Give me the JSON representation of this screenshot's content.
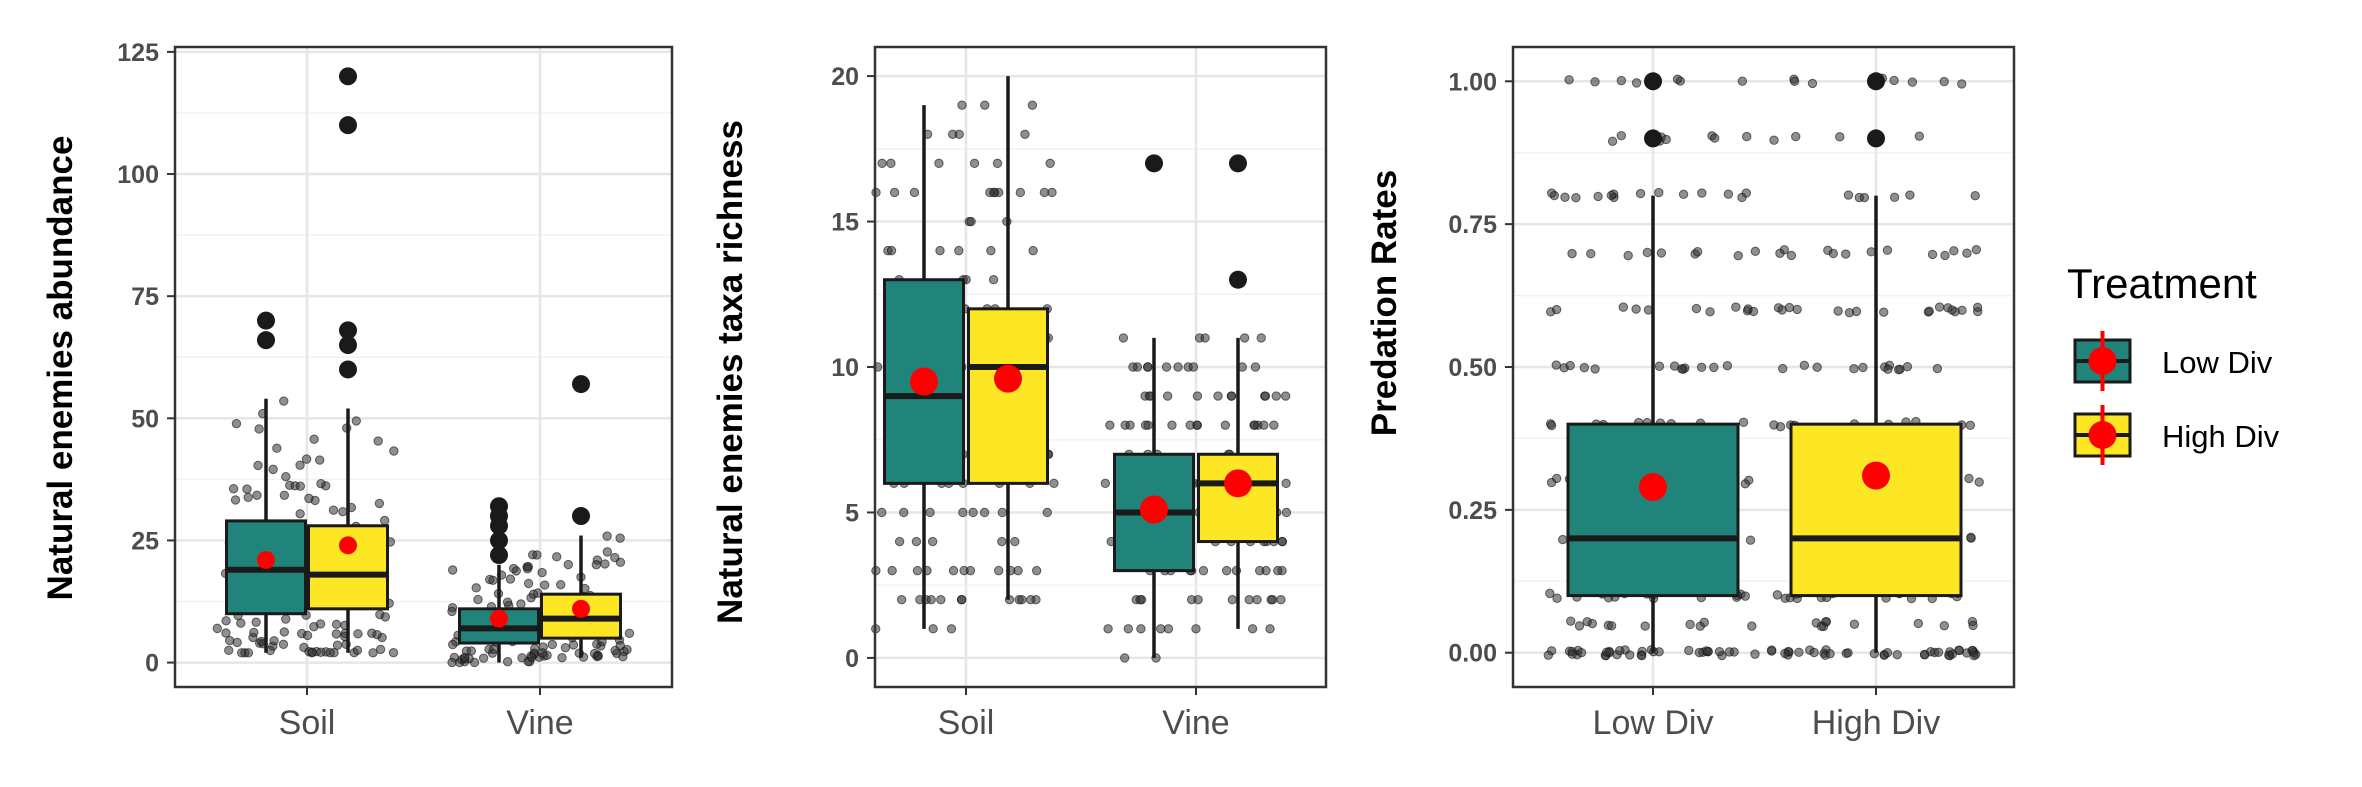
{
  "chart_data": [
    {
      "type": "box",
      "ylabel": "Natural enemies abundance",
      "ylim": [
        -5,
        126
      ],
      "yticks": [
        0,
        25,
        50,
        75,
        100,
        125
      ],
      "categories": [
        "Soil",
        "Vine"
      ],
      "grid": true,
      "jitter_range": [
        2,
        55
      ],
      "series": [
        {
          "name": "Low Div",
          "boxes": [
            {
              "category": "Soil",
              "min": 2,
              "q1": 10,
              "median": 19,
              "q3": 29,
              "max": 54,
              "mean": 21,
              "outliers": [
                70,
                66
              ]
            },
            {
              "category": "Vine",
              "min": 0,
              "q1": 4,
              "median": 7,
              "q3": 11,
              "max": 20,
              "mean": 9,
              "outliers": [
                22,
                25,
                28,
                30,
                32
              ]
            }
          ]
        },
        {
          "name": "High Div",
          "boxes": [
            {
              "category": "Soil",
              "min": 2,
              "q1": 11,
              "median": 18,
              "q3": 28,
              "max": 52,
              "mean": 24,
              "outliers": [
                120,
                110,
                68,
                65,
                60
              ]
            },
            {
              "category": "Vine",
              "min": 1,
              "q1": 5,
              "median": 9,
              "q3": 14,
              "max": 26,
              "mean": 11,
              "outliers": [
                30,
                57
              ]
            }
          ]
        }
      ]
    },
    {
      "type": "box",
      "ylabel": "Natural enemies taxa richness",
      "ylim": [
        -1,
        21
      ],
      "yticks": [
        0,
        5,
        10,
        15,
        20
      ],
      "categories": [
        "Soil",
        "Vine"
      ],
      "grid": true,
      "jitter_range": [
        1,
        19
      ],
      "series": [
        {
          "name": "Low Div",
          "boxes": [
            {
              "category": "Soil",
              "min": 1,
              "q1": 6,
              "median": 9,
              "q3": 13,
              "max": 19,
              "mean": 9.5,
              "outliers": []
            },
            {
              "category": "Vine",
              "min": 0,
              "q1": 3,
              "median": 5,
              "q3": 7,
              "max": 11,
              "mean": 5.1,
              "outliers": [
                17
              ]
            }
          ]
        },
        {
          "name": "High Div",
          "boxes": [
            {
              "category": "Soil",
              "min": 2,
              "q1": 6,
              "median": 10,
              "q3": 12,
              "max": 20,
              "mean": 9.6,
              "outliers": []
            },
            {
              "category": "Vine",
              "min": 1,
              "q1": 4,
              "median": 6,
              "q3": 7,
              "max": 11,
              "mean": 6,
              "outliers": [
                13,
                17
              ]
            }
          ]
        }
      ]
    },
    {
      "type": "box",
      "ylabel": "Predation Rates",
      "ylim": [
        -0.06,
        1.06
      ],
      "yticks": [
        "0.00",
        "0.25",
        "0.50",
        "0.75",
        "1.00"
      ],
      "categories": [
        "Low Div",
        "High Div"
      ],
      "grid": true,
      "series": [
        {
          "name": "Low Div",
          "boxes": [
            {
              "category": "Low Div",
              "min": 0,
              "q1": 0.1,
              "median": 0.2,
              "q3": 0.4,
              "max": 0.8,
              "mean": 0.29,
              "outliers": [
                0.9,
                1.0
              ]
            }
          ]
        },
        {
          "name": "High Div",
          "boxes": [
            {
              "category": "High Div",
              "min": 0,
              "q1": 0.1,
              "median": 0.2,
              "q3": 0.4,
              "max": 0.8,
              "mean": 0.31,
              "outliers": [
                0.9,
                1.0
              ]
            }
          ]
        }
      ]
    }
  ],
  "legend": {
    "title": "Treatment",
    "placement": "right",
    "items": [
      {
        "label": "Low Div",
        "color": "#21847B"
      },
      {
        "label": "High Div",
        "color": "#FDE725"
      }
    ]
  },
  "colors": {
    "low_div": "#21847B",
    "high_div": "#FDE725",
    "mean_marker": "#FF0000",
    "outlier": "#1a1a1a",
    "jitter_point": "#333333",
    "grid_major": "#e6e6e6",
    "grid_minor": "#f2f2f2",
    "panel_border": "#333333"
  },
  "predation_levels": [
    0,
    0.05,
    0.1,
    0.2,
    0.3,
    0.4,
    0.5,
    0.6,
    0.7,
    0.8,
    0.9,
    1.0
  ]
}
